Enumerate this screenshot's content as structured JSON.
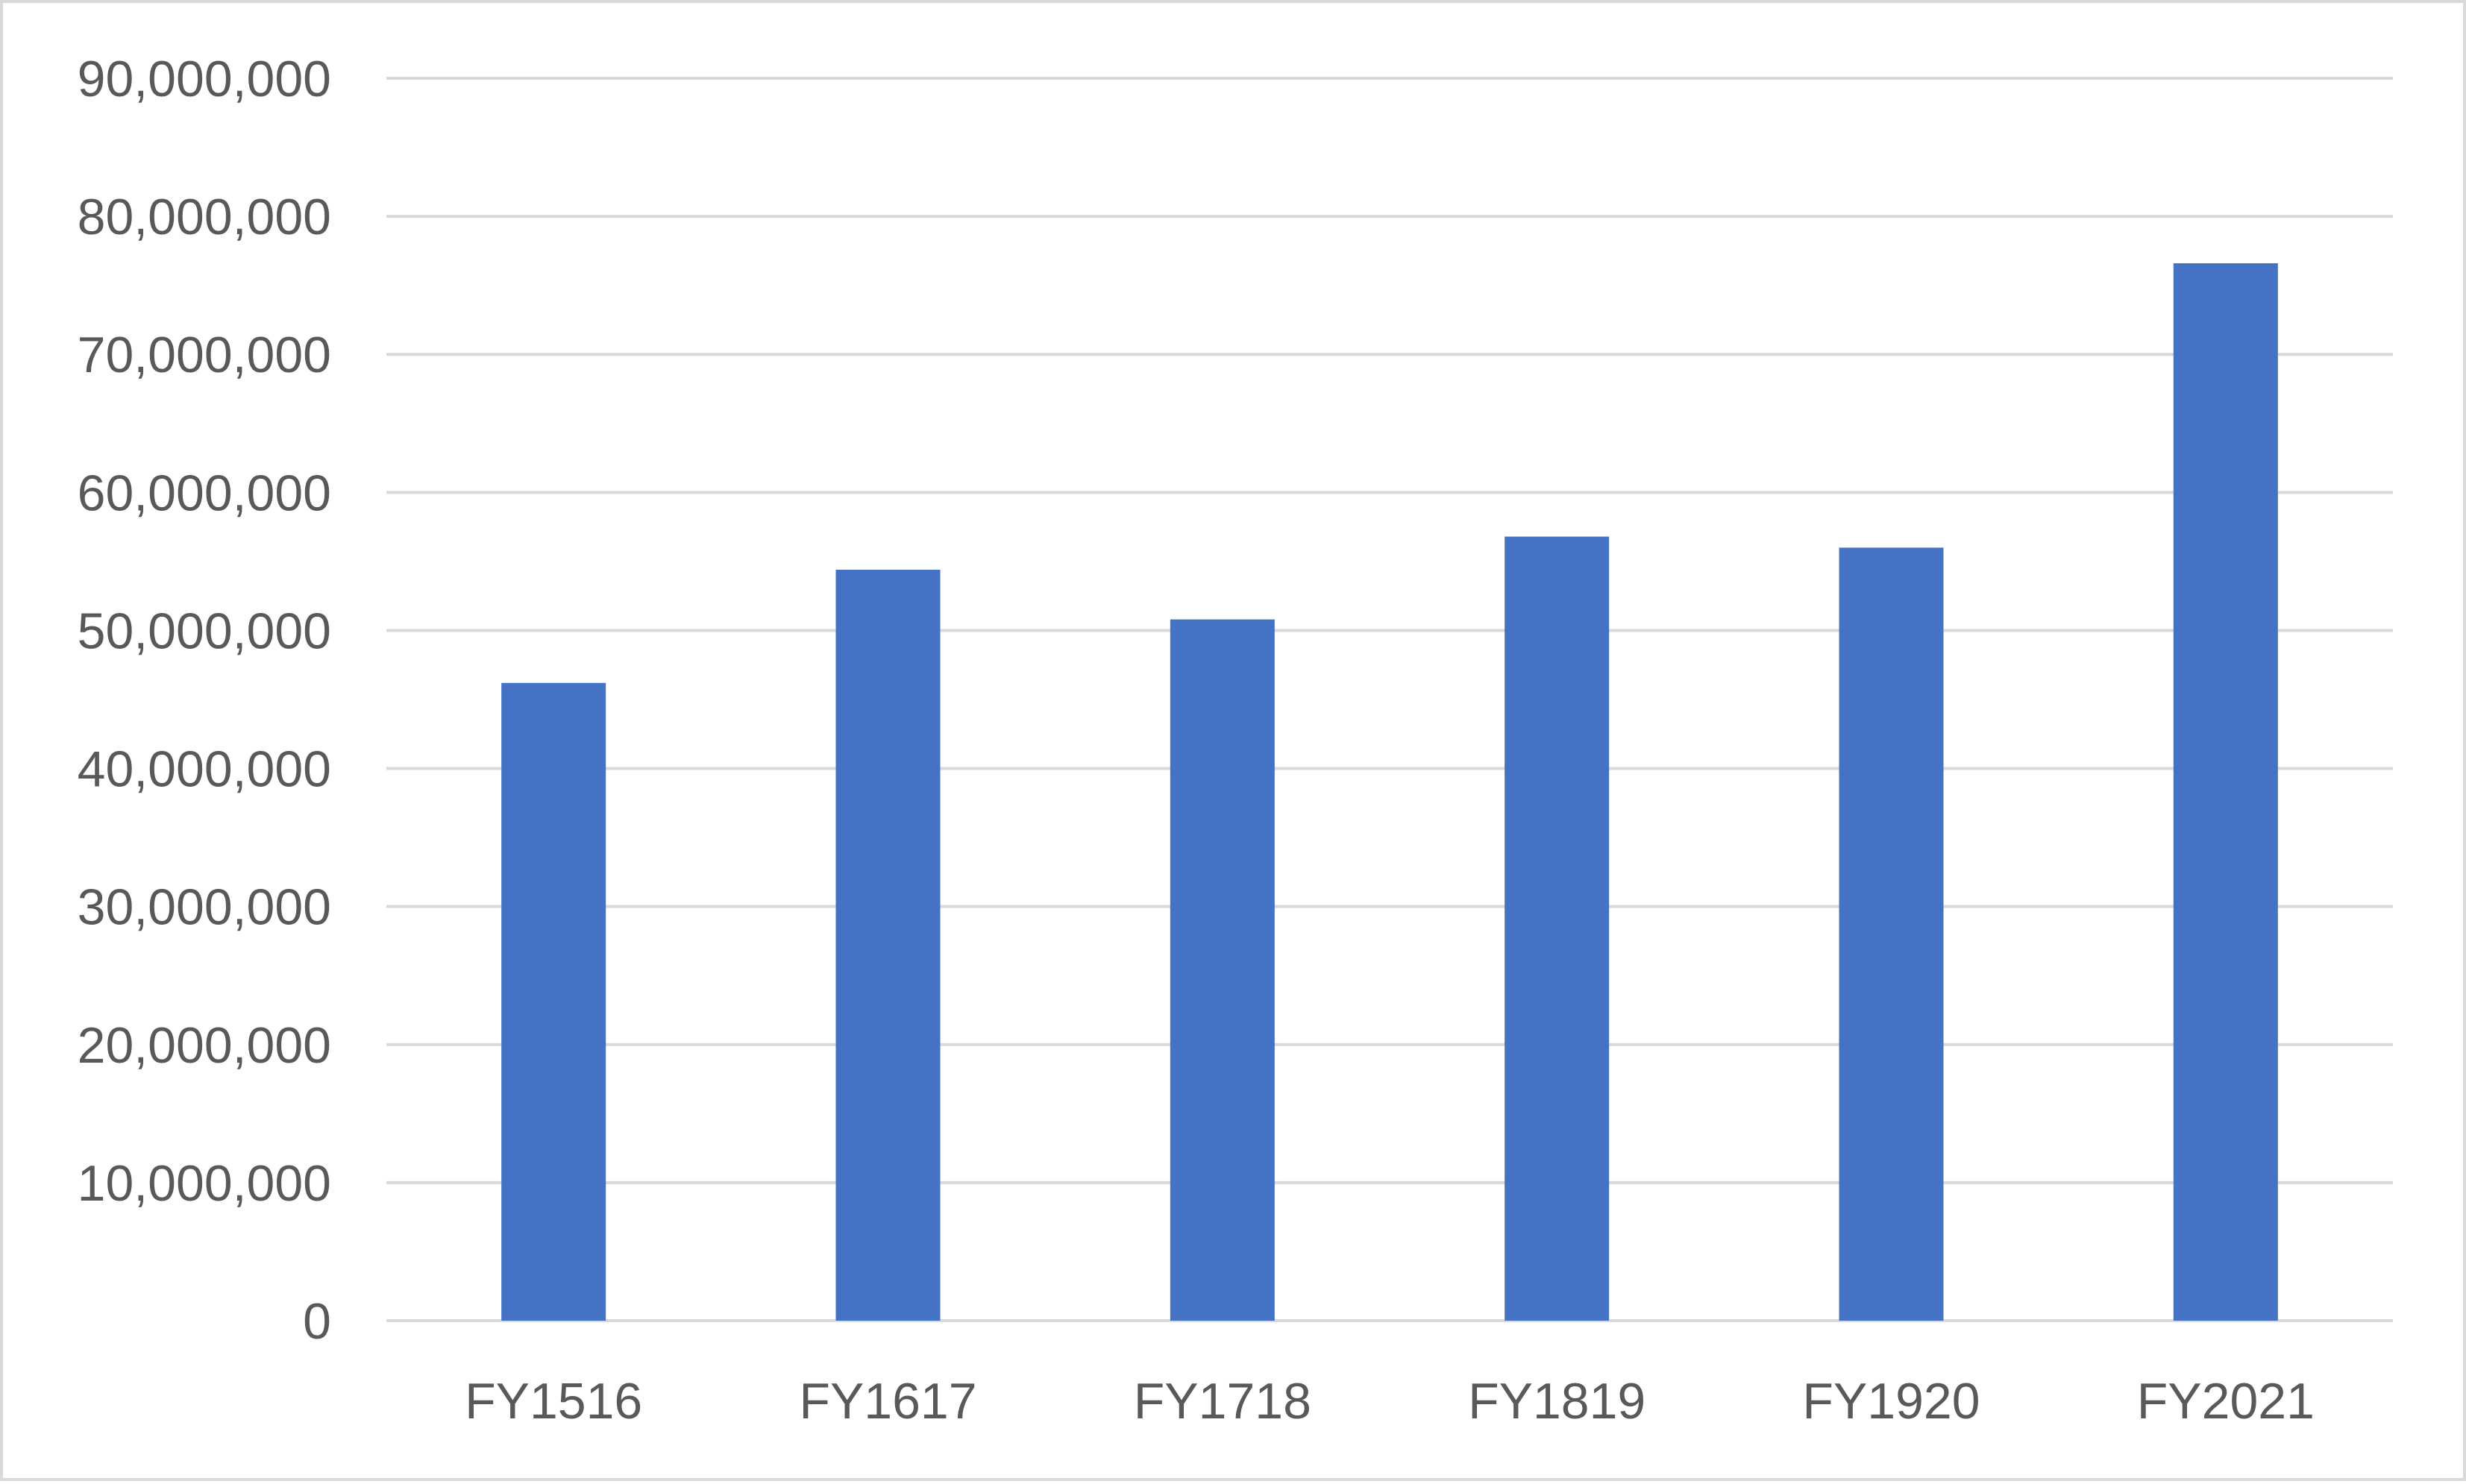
{
  "chart_data": {
    "type": "bar",
    "title": "",
    "xlabel": "",
    "ylabel": "",
    "categories": [
      "FY1516",
      "FY1617",
      "FY1718",
      "FY1819",
      "FY1920",
      "FY2021"
    ],
    "values": [
      46200000,
      54400000,
      50800000,
      56800000,
      56000000,
      76600000
    ],
    "ylim": [
      0,
      90000000
    ],
    "yticks": [
      0,
      10000000,
      20000000,
      30000000,
      40000000,
      50000000,
      60000000,
      70000000,
      80000000,
      90000000
    ],
    "ytick_labels": [
      "0",
      "10,000,000",
      "20,000,000",
      "30,000,000",
      "40,000,000",
      "50,000,000",
      "60,000,000",
      "70,000,000",
      "80,000,000",
      "90,000,000"
    ],
    "grid": true,
    "legend": "none",
    "colors": {
      "bar": "#4472C4",
      "grid": "#d9d9d9",
      "text": "#595959",
      "border": "#d9d9d9"
    }
  }
}
